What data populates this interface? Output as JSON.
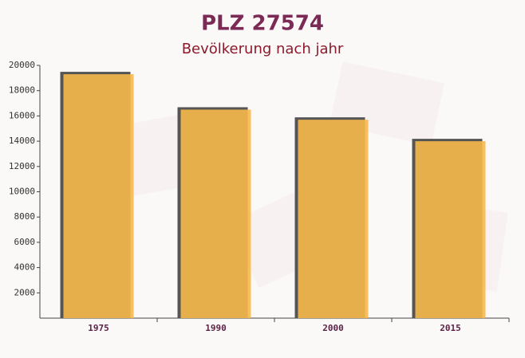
{
  "chart_data": {
    "type": "bar",
    "title": "PLZ 27574",
    "subtitle": "Bevölkerung nach jahr",
    "categories": [
      "1975",
      "1990",
      "2000",
      "2015"
    ],
    "values": [
      19300,
      16500,
      15700,
      14000
    ],
    "color": "#f7b84b",
    "ylim": [
      0,
      20000
    ],
    "yticks": [
      2000,
      4000,
      6000,
      8000,
      10000,
      12000,
      14000,
      16000,
      18000,
      20000
    ]
  }
}
